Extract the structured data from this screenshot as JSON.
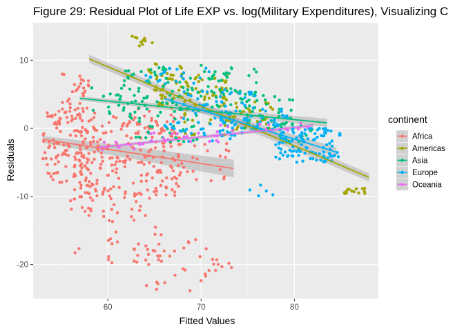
{
  "chart_data": {
    "type": "scatter",
    "title": "Figure 29: Residual Plot of Life EXP vs. log(Military Expenditures), Visualizing C",
    "xlabel": "Fitted Values",
    "ylabel": "Residuals",
    "xlim": [
      52,
      89
    ],
    "ylim": [
      -25,
      15.5
    ],
    "x_ticks": [
      60,
      70,
      80
    ],
    "y_ticks": [
      -20,
      -10,
      0,
      10
    ],
    "grid": true,
    "legend": {
      "title": "continent",
      "position": "right"
    },
    "series": [
      {
        "name": "Africa",
        "color": "#F8766D",
        "trend": {
          "x": [
            53,
            73.5
          ],
          "y": [
            -1.6,
            -5.9
          ],
          "band": [
            0.5,
            1.3
          ]
        },
        "clusters": [
          {
            "x": [
              53,
              59
            ],
            "y": [
              -8,
              3
            ],
            "n": 140
          },
          {
            "x": [
              55,
              58
            ],
            "y": [
              3,
              8
            ],
            "n": 25
          },
          {
            "x": [
              57,
              68
            ],
            "y": [
              -10,
              2
            ],
            "n": 180
          },
          {
            "x": [
              56,
              60
            ],
            "y": [
              -13,
              -8
            ],
            "n": 25
          },
          {
            "x": [
              60,
              66
            ],
            "y": [
              -20,
              -9
            ],
            "n": 40
          },
          {
            "x": [
              64,
              71
            ],
            "y": [
              -24,
              -16
            ],
            "n": 28
          },
          {
            "x": [
              71,
              74
            ],
            "y": [
              -21,
              -19
            ],
            "n": 8
          },
          {
            "x": [
              64,
              73
            ],
            "y": [
              -8,
              -2
            ],
            "n": 25
          },
          {
            "x": [
              62,
              68
            ],
            "y": [
              -3,
              3
            ],
            "n": 18
          },
          {
            "x": [
              56,
              57
            ],
            "y": [
              -18.5,
              -17.5
            ],
            "n": 2
          }
        ]
      },
      {
        "name": "Americas",
        "color": "#A3A500",
        "trend": {
          "x": [
            58,
            88
          ],
          "y": [
            10.2,
            -7.2
          ],
          "band": [
            0.6,
            0.6
          ]
        },
        "clusters": [
          {
            "x": [
              62,
              65
            ],
            "y": [
              12,
              13.6
            ],
            "n": 10
          },
          {
            "x": [
              65,
              73
            ],
            "y": [
              3,
              8
            ],
            "n": 80
          },
          {
            "x": [
              72,
              78
            ],
            "y": [
              0,
              4
            ],
            "n": 35
          },
          {
            "x": [
              68,
              75
            ],
            "y": [
              -1,
              3
            ],
            "n": 20
          },
          {
            "x": [
              85,
              88
            ],
            "y": [
              -9.6,
              -8.8
            ],
            "n": 14
          },
          {
            "x": [
              64,
              68
            ],
            "y": [
              7,
              9.5
            ],
            "n": 15
          }
        ]
      },
      {
        "name": "Asia",
        "color": "#00BF7D",
        "trend": {
          "x": [
            57,
            83.5
          ],
          "y": [
            4.4,
            0.8
          ],
          "band": [
            0.3,
            0.6
          ]
        },
        "clusters": [
          {
            "x": [
              60,
              76
            ],
            "y": [
              3,
              9.5
            ],
            "n": 110
          },
          {
            "x": [
              62,
              70
            ],
            "y": [
              -2,
              3
            ],
            "n": 40
          },
          {
            "x": [
              74,
              80
            ],
            "y": [
              0,
              5
            ],
            "n": 35
          },
          {
            "x": [
              78,
              82
            ],
            "y": [
              -2,
              1
            ],
            "n": 15
          },
          {
            "x": [
              58,
              64
            ],
            "y": [
              2,
              6
            ],
            "n": 15
          }
        ]
      },
      {
        "name": "Europe",
        "color": "#00B0F6",
        "trend": {
          "x": [
            66,
            84.5
          ],
          "y": [
            4.4,
            -3.5
          ],
          "band": [
            0.4,
            0.7
          ]
        },
        "clusters": [
          {
            "x": [
              64,
              71
            ],
            "y": [
              6,
              9
            ],
            "n": 20
          },
          {
            "x": [
              68,
              76
            ],
            "y": [
              1,
              6
            ],
            "n": 40
          },
          {
            "x": [
              72,
              80
            ],
            "y": [
              -1,
              3
            ],
            "n": 60
          },
          {
            "x": [
              78,
              85
            ],
            "y": [
              -4.5,
              0
            ],
            "n": 90
          },
          {
            "x": [
              66,
              74
            ],
            "y": [
              -2,
              1
            ],
            "n": 30
          },
          {
            "x": [
              75,
              78
            ],
            "y": [
              -10,
              -8
            ],
            "n": 5
          },
          {
            "x": [
              80,
              84
            ],
            "y": [
              -5,
              -3
            ],
            "n": 15
          }
        ]
      },
      {
        "name": "Oceania",
        "color": "#E76BF3",
        "trend": {
          "x": [
            59,
            82
          ],
          "y": [
            -2.8,
            0.4
          ],
          "band": [
            0.2,
            0.3
          ]
        },
        "clusters": [
          {
            "x": [
              59,
              64
            ],
            "y": [
              -3.2,
              -2
            ],
            "n": 12
          },
          {
            "x": [
              64,
              72
            ],
            "y": [
              -2,
              -0.5
            ],
            "n": 18
          },
          {
            "x": [
              72,
              82
            ],
            "y": [
              -0.5,
              0.8
            ],
            "n": 14
          }
        ]
      }
    ]
  }
}
